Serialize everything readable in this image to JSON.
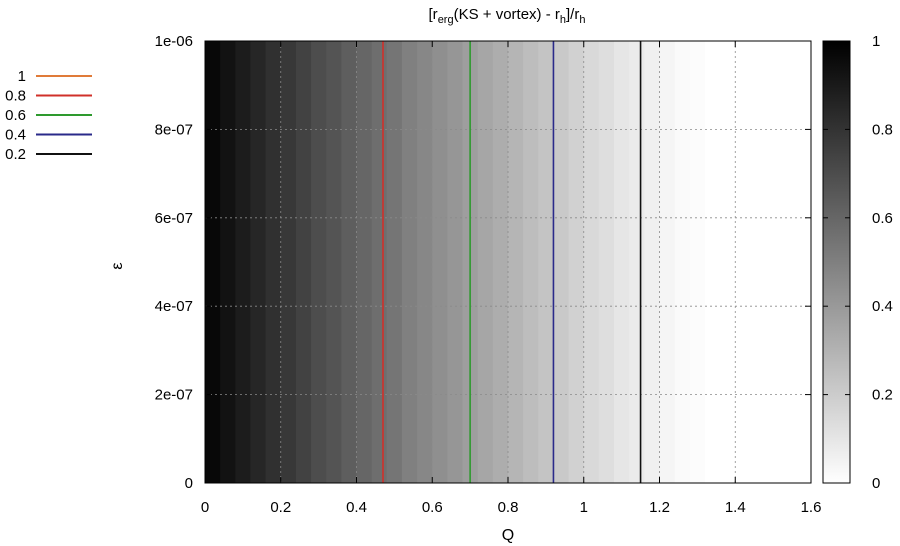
{
  "chart_data": {
    "type": "heatmap",
    "title": {
      "main": "[r",
      "sub1": "erg",
      "mid": "(KS + vortex) - r",
      "sub2": "h",
      "tail": "]/r",
      "sub3": "h"
    },
    "xlabel": "Q",
    "ylabel": "ε",
    "xlim": [
      0,
      1.6
    ],
    "ylim": [
      0,
      1e-06
    ],
    "x_ticks": [
      "0",
      "0.2",
      "0.4",
      "0.6",
      "0.8",
      "1",
      "1.2",
      "1.4",
      "1.6"
    ],
    "y_ticks": [
      "0",
      "2e-07",
      "4e-07",
      "6e-07",
      "8e-07",
      "1e-06"
    ],
    "grid": true,
    "colorbar": {
      "range": [
        0,
        1
      ],
      "ticks": [
        "0",
        "0.2",
        "0.4",
        "0.6",
        "0.8",
        "1"
      ],
      "colormap": "gray (0 = white, 1 = black)"
    },
    "field": {
      "q_step": 0.04,
      "values": [
        0.97,
        0.93,
        0.89,
        0.85,
        0.81,
        0.78,
        0.74,
        0.7,
        0.67,
        0.63,
        0.6,
        0.57,
        0.54,
        0.5,
        0.47,
        0.44,
        0.41,
        0.38,
        0.35,
        0.32,
        0.29,
        0.26,
        0.23,
        0.21,
        0.18,
        0.15,
        0.13,
        0.1,
        0.08,
        0.06,
        0.04,
        0.02,
        0.01,
        0.0,
        0.0,
        0.0,
        0.0,
        0.0,
        0.0,
        0.0
      ]
    },
    "series": [
      {
        "name": "1",
        "color": "#e07b39",
        "q": 0.0
      },
      {
        "name": "0.8",
        "color": "#d0302a",
        "q": 0.47
      },
      {
        "name": "0.6",
        "color": "#2e9a2e",
        "q": 0.7
      },
      {
        "name": "0.4",
        "color": "#2a2a8a",
        "q": 0.92
      },
      {
        "name": "0.2",
        "color": "#111111",
        "q": 1.15
      }
    ],
    "legend_position": "outside-left-top"
  }
}
